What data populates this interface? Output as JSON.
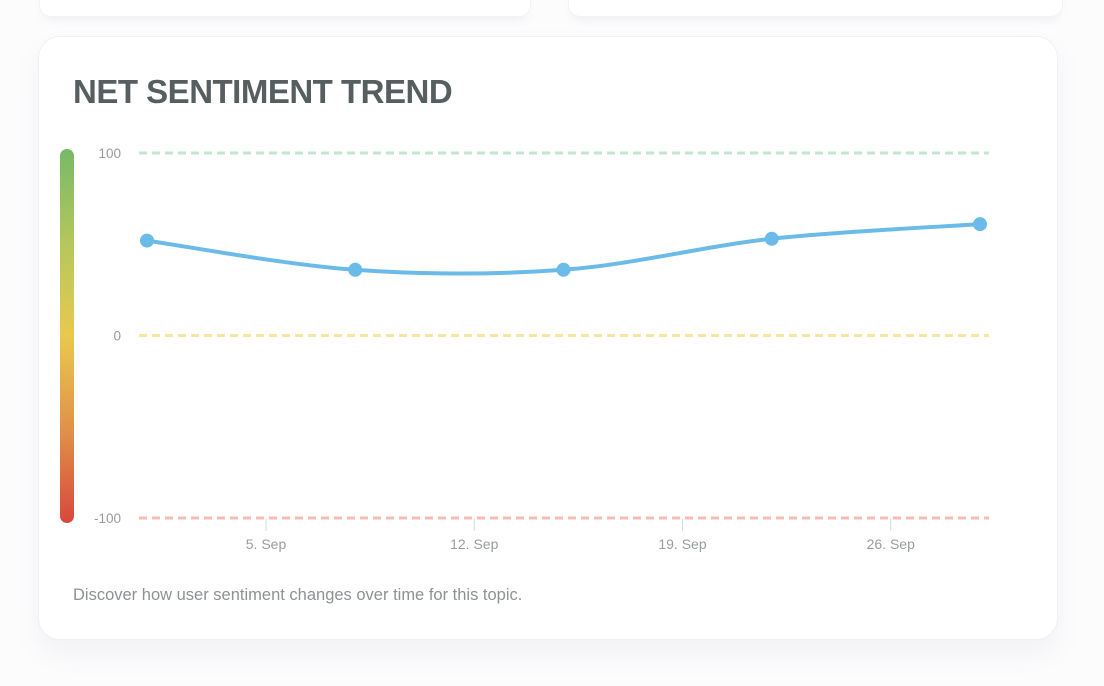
{
  "card": {
    "title": "NET SENTIMENT TREND",
    "description": "Discover how user sentiment changes over time for this topic."
  },
  "chart_data": {
    "type": "line",
    "title": "NET SENTIMENT TREND",
    "series": [
      {
        "name": "Net sentiment",
        "x_day_offsets": [
          0,
          7,
          14,
          21,
          28
        ],
        "values": [
          52,
          36,
          36,
          53,
          61
        ]
      }
    ],
    "ylim": [
      -100,
      100
    ],
    "y_gridlines": [
      {
        "value": 100,
        "label": "100",
        "color": "#c3e6cf"
      },
      {
        "value": 0,
        "label": "0",
        "color": "#f8e5a0"
      },
      {
        "value": -100,
        "label": "-100",
        "color": "#f5bcb6"
      }
    ],
    "x_ticks": [
      {
        "label": "5. Sep",
        "day_offset": 4
      },
      {
        "label": "12. Sep",
        "day_offset": 11
      },
      {
        "label": "19. Sep",
        "day_offset": 18
      },
      {
        "label": "26. Sep",
        "day_offset": 25
      }
    ],
    "grid": "horizontal-dashed",
    "legend": "none",
    "colors": {
      "line": "#6bbbe8",
      "marker": "#6bbbe8",
      "scale_top": "#76ba67",
      "scale_upper_mid": "#b9c75b",
      "scale_mid": "#e9c94e",
      "scale_lower_mid": "#e08f48",
      "scale_bottom": "#d8473c"
    }
  }
}
